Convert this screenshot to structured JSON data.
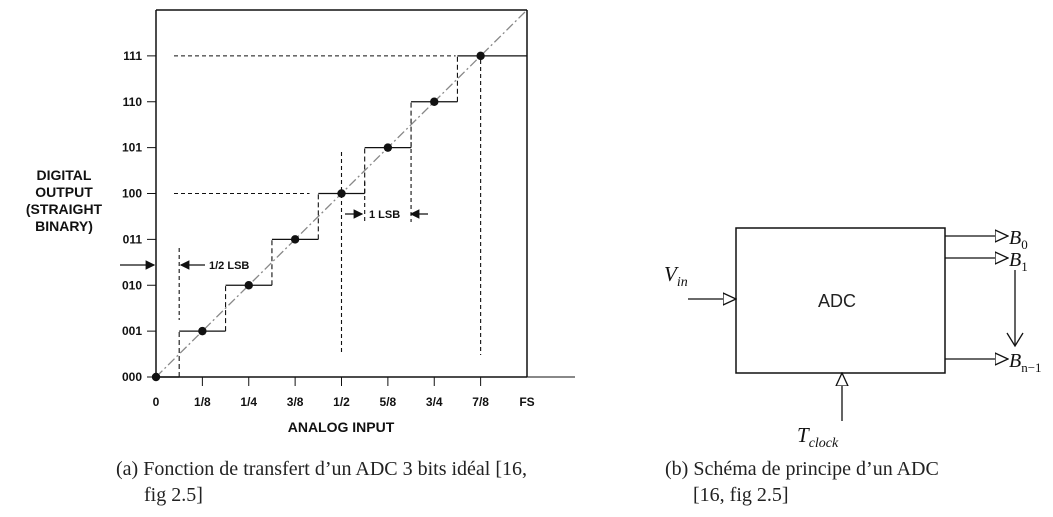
{
  "chart_data": {
    "type": "line",
    "ylabel": [
      "DIGITAL",
      "OUTPUT",
      "(STRAIGHT",
      "BINARY)"
    ],
    "xlabel": "ANALOG INPUT",
    "x_ticks": [
      "0",
      "1/8",
      "1/4",
      "3/8",
      "1/2",
      "5/8",
      "3/4",
      "7/8",
      "FS"
    ],
    "y_ticks": [
      "000",
      "001",
      "010",
      "011",
      "100",
      "101",
      "110",
      "111"
    ],
    "codes": [
      {
        "input": 0,
        "code": "000"
      },
      {
        "input": 0.125,
        "code": "001"
      },
      {
        "input": 0.25,
        "code": "010"
      },
      {
        "input": 0.375,
        "code": "011"
      },
      {
        "input": 0.5,
        "code": "100"
      },
      {
        "input": 0.625,
        "code": "101"
      },
      {
        "input": 0.75,
        "code": "110"
      },
      {
        "input": 0.875,
        "code": "111"
      }
    ],
    "annotations": {
      "half_lsb": "1/2 LSB",
      "one_lsb": "1 LSB"
    }
  },
  "diagram": {
    "block_label": "ADC",
    "input": {
      "base": "V",
      "sub": "in"
    },
    "clock": {
      "base": "T",
      "sub": "clock"
    },
    "outputs": [
      {
        "base": "B",
        "sub": "0"
      },
      {
        "base": "B",
        "sub": "1"
      },
      {
        "base": "B",
        "sub": "n−1"
      }
    ]
  },
  "captions": {
    "a": [
      "(a) Fonction de transfert d’un ADC 3 bits idéal [16,",
      "fig 2.5]"
    ],
    "b": [
      "(b) Schéma de principe d’un ADC",
      "[16, fig 2.5]"
    ]
  }
}
